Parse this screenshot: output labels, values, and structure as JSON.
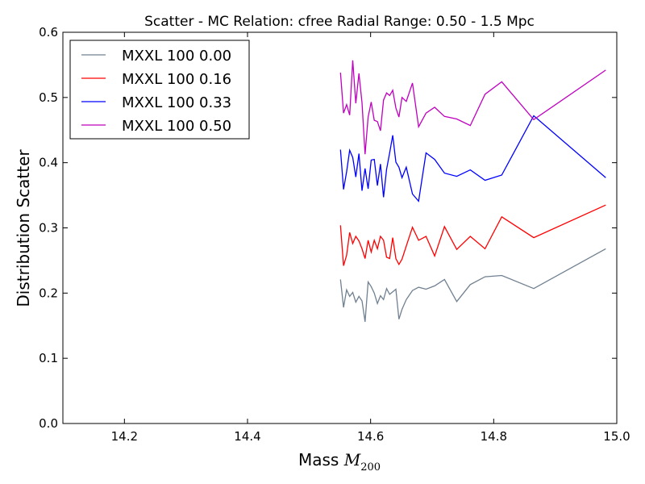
{
  "chart_data": {
    "type": "line",
    "title": "Scatter - MC Relation: cfree Radial Range: 0.50 - 1.5 Mpc",
    "xlabel_text": "Mass ",
    "xlabel_symbol": "M",
    "xlabel_subscript": "200",
    "ylabel": "Distribution Scatter",
    "xlim": [
      14.1,
      15.0
    ],
    "ylim": [
      0.0,
      0.6
    ],
    "x_ticks": [
      "14.2",
      "14.4",
      "14.6",
      "14.8",
      "15.0"
    ],
    "y_ticks": [
      "0.0",
      "0.1",
      "0.2",
      "0.3",
      "0.4",
      "0.5",
      "0.6"
    ],
    "grid": false,
    "legend_position": "upper-left",
    "x": [
      14.551,
      14.556,
      14.561,
      14.566,
      14.571,
      14.576,
      14.581,
      14.586,
      14.591,
      14.596,
      14.601,
      14.606,
      14.611,
      14.616,
      14.621,
      14.626,
      14.631,
      14.636,
      14.641,
      14.646,
      14.651,
      14.658,
      14.668,
      14.678,
      14.69,
      14.704,
      14.72,
      14.74,
      14.762,
      14.786,
      14.813,
      14.865,
      14.982
    ],
    "series": [
      {
        "name": "MXXL 100 0.00",
        "color": "#708090",
        "values": [
          0.221,
          0.178,
          0.205,
          0.195,
          0.201,
          0.186,
          0.195,
          0.188,
          0.156,
          0.217,
          0.21,
          0.2,
          0.184,
          0.196,
          0.19,
          0.207,
          0.198,
          0.202,
          0.206,
          0.16,
          0.175,
          0.19,
          0.204,
          0.209,
          0.206,
          0.211,
          0.221,
          0.187,
          0.213,
          0.225,
          0.227,
          0.207,
          0.268
        ]
      },
      {
        "name": "MXXL 100 0.16",
        "color": "#ff0000",
        "values": [
          0.304,
          0.242,
          0.258,
          0.293,
          0.276,
          0.287,
          0.28,
          0.268,
          0.253,
          0.281,
          0.263,
          0.281,
          0.268,
          0.287,
          0.281,
          0.255,
          0.253,
          0.285,
          0.253,
          0.244,
          0.252,
          0.272,
          0.301,
          0.281,
          0.287,
          0.257,
          0.302,
          0.267,
          0.287,
          0.268,
          0.317,
          0.285,
          0.335
        ]
      },
      {
        "name": "MXXL 100 0.33",
        "color": "#0000ff",
        "values": [
          0.42,
          0.359,
          0.386,
          0.419,
          0.408,
          0.378,
          0.414,
          0.357,
          0.391,
          0.36,
          0.404,
          0.405,
          0.365,
          0.398,
          0.347,
          0.39,
          0.415,
          0.442,
          0.401,
          0.393,
          0.377,
          0.393,
          0.352,
          0.341,
          0.415,
          0.405,
          0.384,
          0.379,
          0.389,
          0.373,
          0.381,
          0.472,
          0.377
        ]
      },
      {
        "name": "MXXL 100 0.50",
        "color": "#bf00bf",
        "values": [
          0.538,
          0.476,
          0.489,
          0.473,
          0.557,
          0.491,
          0.537,
          0.492,
          0.413,
          0.47,
          0.493,
          0.465,
          0.463,
          0.449,
          0.496,
          0.507,
          0.503,
          0.511,
          0.484,
          0.47,
          0.5,
          0.494,
          0.522,
          0.455,
          0.476,
          0.485,
          0.471,
          0.467,
          0.457,
          0.505,
          0.524,
          0.466,
          0.542
        ]
      }
    ]
  }
}
